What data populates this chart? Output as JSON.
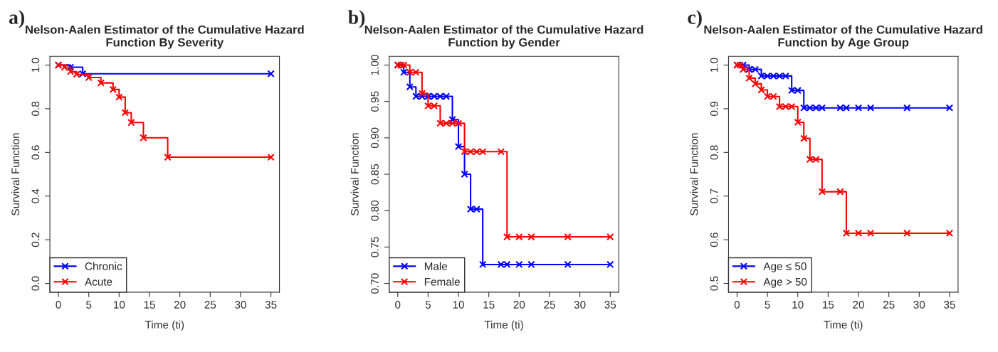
{
  "chart_data": [
    {
      "type": "step",
      "title": "Nelson-Aalen Estimator of the Cumulative Hazard\nFunction By Severity",
      "xlabel": "Time (ti)",
      "ylabel": "Survival Function",
      "annotations": [
        "a)"
      ],
      "xlim": [
        -1.4,
        36.4
      ],
      "ylim": [
        -0.04,
        1.04
      ],
      "xticks": [
        0,
        5,
        10,
        15,
        20,
        25,
        30,
        35
      ],
      "yticks": [
        {
          "value": 0,
          "label": "0.0"
        },
        0.2,
        0.4,
        0.6,
        0.8,
        {
          "value": 1,
          "label": "1.0"
        }
      ],
      "legend": "bottom left",
      "marker": "cross",
      "grid": false,
      "series": [
        {
          "name": "Chronic",
          "color": "#0000ff",
          "x": [
            0,
            2,
            4,
            35
          ],
          "values": [
            1,
            0.99,
            0.96,
            0.96
          ]
        },
        {
          "name": "Acute",
          "color": "#ff0000",
          "x": [
            0,
            1,
            2,
            3,
            5,
            7,
            9,
            10,
            11,
            12,
            14,
            18,
            35
          ],
          "values": [
            1,
            0.99,
            0.97,
            0.957,
            0.943,
            0.918,
            0.888,
            0.853,
            0.782,
            0.737,
            0.667,
            0.578,
            0.578
          ]
        }
      ]
    },
    {
      "type": "step",
      "title": "Nelson-Aalen Estimator of the Cumulative Hazard\nFunction by Gender",
      "xlabel": "Time (ti)",
      "ylabel": "Survival Function",
      "annotations": [
        "b)"
      ],
      "xlim": [
        -1.4,
        36.4
      ],
      "ylim": [
        0.688,
        1.012
      ],
      "xticks": [
        0,
        5,
        10,
        15,
        20,
        25,
        30,
        35
      ],
      "yticks": [
        {
          "value": 0.7,
          "label": "0.70"
        },
        0.75,
        {
          "value": 0.8,
          "label": "0.80"
        },
        0.85,
        {
          "value": 0.9,
          "label": "0.90"
        },
        0.95,
        {
          "value": 1,
          "label": "1.00"
        }
      ],
      "legend": "bottom left",
      "marker": "cross",
      "grid": false,
      "series": [
        {
          "name": "Male",
          "color": "#0000ff",
          "x": [
            0,
            1,
            2,
            3,
            4,
            5,
            6,
            7,
            8,
            9,
            10,
            11,
            12,
            13,
            14,
            17,
            18,
            20,
            22,
            28,
            35
          ],
          "values": [
            1,
            0.99,
            0.97,
            0.957,
            0.957,
            0.957,
            0.957,
            0.957,
            0.957,
            0.925,
            0.888,
            0.85,
            0.802,
            0.802,
            0.726,
            0.726,
            0.726,
            0.726,
            0.726,
            0.726,
            0.726
          ]
        },
        {
          "name": "Female",
          "color": "#ff0000",
          "x": [
            0,
            0.5,
            1,
            2,
            3,
            4,
            5,
            6,
            7,
            8,
            9,
            10,
            11,
            12,
            13,
            14,
            17,
            18,
            20,
            22,
            28,
            35
          ],
          "values": [
            1,
            1,
            1,
            0.99,
            0.99,
            0.961,
            0.944,
            0.944,
            0.92,
            0.92,
            0.92,
            0.92,
            0.881,
            0.881,
            0.881,
            0.881,
            0.881,
            0.764,
            0.764,
            0.764,
            0.764,
            0.764
          ]
        }
      ]
    },
    {
      "type": "step",
      "title": "Nelson-Aalen Estimator of the Cumulative Hazard\nFunction by Age Group",
      "xlabel": "Time (ti)",
      "ylabel": "Survival Function",
      "annotations": [
        "c)"
      ],
      "xlim": [
        -1.4,
        36.4
      ],
      "ylim": [
        0.48,
        1.02
      ],
      "xticks": [
        0,
        5,
        10,
        15,
        20,
        25,
        30,
        35
      ],
      "yticks": [
        0.5,
        0.6,
        0.7,
        0.8,
        0.9,
        {
          "value": 1,
          "label": "1.0"
        }
      ],
      "legend": "bottom left",
      "marker": "cross",
      "grid": false,
      "series": [
        {
          "name": "Age ≤ 50",
          "color": "#0000ff",
          "x": [
            0,
            1,
            2,
            3,
            4,
            5,
            6,
            7,
            8,
            9,
            10,
            11,
            12,
            13,
            14,
            17,
            18,
            20,
            22,
            28,
            35
          ],
          "values": [
            1,
            1,
            0.99,
            0.99,
            0.975,
            0.975,
            0.975,
            0.975,
            0.975,
            0.942,
            0.942,
            0.902,
            0.902,
            0.902,
            0.902,
            0.902,
            0.902,
            0.902,
            0.902,
            0.902,
            0.902
          ]
        },
        {
          "name": "Age > 50",
          "color": "#ff0000",
          "x": [
            0,
            0.5,
            1,
            2,
            3,
            4,
            5,
            6,
            7,
            8,
            9,
            10,
            11,
            12,
            13,
            14,
            17,
            18,
            20,
            22,
            28,
            35
          ],
          "values": [
            1,
            1,
            0.99,
            0.97,
            0.957,
            0.943,
            0.928,
            0.928,
            0.905,
            0.905,
            0.905,
            0.869,
            0.832,
            0.784,
            0.784,
            0.71,
            0.71,
            0.615,
            0.615,
            0.615,
            0.615,
            0.615
          ]
        }
      ]
    }
  ]
}
